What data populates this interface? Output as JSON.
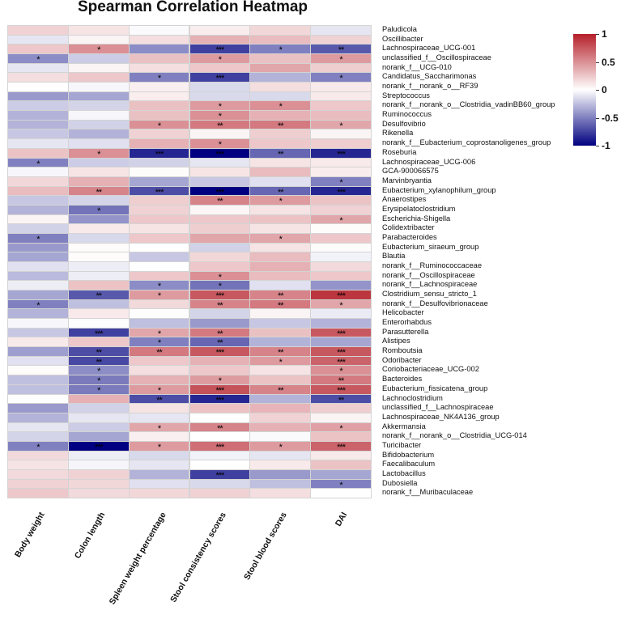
{
  "chart_data": {
    "type": "heatmap",
    "title": "Spearman Correlation Heatmap",
    "columns": [
      "Body weight",
      "Colon length",
      "Spleen weight percentage",
      "Stool consistency scores",
      "Stool blood scores",
      "DAI"
    ],
    "rows": [
      "Paludicola",
      "Oscillibacter",
      "Lachnospiraceae_UCG-001",
      "unclassified_f__Oscillospiraceae",
      "norank_f__UCG-010",
      "Candidatus_Saccharimonas",
      "norank_f__norank_o__RF39",
      "Streptococcus",
      "norank_f__norank_o__Clostridia_vadinBB60_group",
      "Ruminococcus",
      "Desulfovibrio",
      "Rikenella",
      "norank_f__Eubacterium_coprostanoligenes_group",
      "Roseburia",
      "Lachnospiraceae_UCG-006",
      "GCA-900066575",
      "Marvinbryantia",
      "Eubacterium_xylanophilum_group",
      "Anaerostipes",
      "Erysipelatoclostridium",
      "Escherichia-Shigella",
      "Colidextribacter",
      "Parabacteroides",
      "Eubacterium_siraeum_group",
      "Blautia",
      "norank_f__Ruminococcaceae",
      "norank_f__Oscillospiraceae",
      "norank_f__Lachnospiraceae",
      "Clostridium_sensu_stricto_1",
      "norank_f__Desulfovibrionaceae",
      "Helicobacter",
      "Enterorhabdus",
      "Parasutterella",
      "Alistipes",
      "Romboutsia",
      "Odoribacter",
      "Coriobacteriaceae_UCG-002",
      "Bacteroides",
      "Eubacterium_fissicatena_group",
      "Lachnoclostridium",
      "unclassified_f__Lachnospiraceae",
      "Lachnospiraceae_NK4A136_group",
      "Akkermansia",
      "norank_f__norank_o__Clostridia_UCG-014",
      "Turicibacter",
      "Bifidobacterium",
      "Faecalibaculum",
      "Lactobacillus",
      "Dubosiella",
      "norank_f__Muribaculaceae"
    ],
    "values": [
      [
        0.2,
        0.12,
        -0.02,
        0.08,
        0.18,
        -0.1
      ],
      [
        -0.1,
        0.05,
        0.15,
        0.35,
        0.3,
        0.2
      ],
      [
        0.25,
        0.5,
        -0.45,
        -0.75,
        -0.5,
        -0.65
      ],
      [
        -0.45,
        -0.2,
        0.28,
        0.45,
        0.28,
        0.45
      ],
      [
        -0.1,
        0.05,
        0.15,
        0.25,
        0.4,
        0.22
      ],
      [
        0.15,
        0.25,
        -0.5,
        -0.75,
        -0.3,
        -0.5
      ],
      [
        0.0,
        -0.03,
        0.07,
        -0.15,
        0.15,
        0.1
      ],
      [
        -0.4,
        -0.35,
        0.08,
        -0.15,
        -0.15,
        0.1
      ],
      [
        -0.2,
        -0.17,
        0.28,
        0.45,
        0.5,
        0.25
      ],
      [
        -0.3,
        -0.03,
        0.28,
        0.5,
        0.35,
        0.3
      ],
      [
        -0.3,
        -0.18,
        0.5,
        0.6,
        0.6,
        0.4
      ],
      [
        -0.22,
        -0.3,
        0.2,
        0.05,
        0.22,
        0.05
      ],
      [
        -0.1,
        -0.12,
        0.35,
        0.5,
        0.25,
        0.22
      ],
      [
        0.27,
        0.5,
        -0.85,
        -1.0,
        -0.6,
        -0.85
      ],
      [
        -0.5,
        -0.2,
        -0.18,
        -0.1,
        0.12,
        0.1
      ],
      [
        -0.03,
        0.12,
        0.02,
        0.12,
        0.3,
        0.08
      ],
      [
        0.18,
        0.35,
        -0.35,
        -0.22,
        -0.12,
        -0.5
      ],
      [
        0.3,
        0.55,
        -0.7,
        -1.0,
        -0.6,
        -0.85
      ],
      [
        -0.22,
        -0.17,
        0.22,
        0.55,
        0.45,
        0.27
      ],
      [
        -0.3,
        -0.55,
        0.2,
        0.04,
        0.12,
        0.2
      ],
      [
        0.05,
        -0.42,
        0.25,
        0.25,
        0.27,
        0.4
      ],
      [
        -0.18,
        0.1,
        0.12,
        0.22,
        0.12,
        0.02
      ],
      [
        -0.5,
        -0.15,
        0.25,
        0.4,
        0.4,
        0.25
      ],
      [
        -0.4,
        0.02,
        0.0,
        -0.18,
        0.12,
        0.02
      ],
      [
        -0.35,
        0.02,
        -0.22,
        0.18,
        0.3,
        -0.05
      ],
      [
        -0.12,
        -0.07,
        0.0,
        0.25,
        0.35,
        0.17
      ],
      [
        -0.27,
        -0.07,
        0.25,
        0.5,
        0.3,
        0.25
      ],
      [
        -0.07,
        0.27,
        -0.45,
        -0.55,
        -0.12,
        -0.42
      ],
      [
        -0.35,
        -0.65,
        0.45,
        0.75,
        0.55,
        0.9
      ],
      [
        -0.5,
        -0.25,
        0.17,
        0.55,
        0.6,
        0.4
      ],
      [
        -0.3,
        0.1,
        0.01,
        -0.17,
        0.05,
        -0.08
      ],
      [
        -0.03,
        0.01,
        -0.25,
        -0.4,
        -0.22,
        -0.3
      ],
      [
        -0.22,
        -0.75,
        0.4,
        0.6,
        0.28,
        0.75
      ],
      [
        0.1,
        0.25,
        -0.5,
        -0.6,
        -0.3,
        -0.35
      ],
      [
        -0.38,
        -0.7,
        0.6,
        0.75,
        0.55,
        0.75
      ],
      [
        -0.12,
        -0.72,
        0.25,
        0.35,
        0.45,
        0.7
      ],
      [
        0.02,
        -0.45,
        0.15,
        0.25,
        0.12,
        0.5
      ],
      [
        -0.25,
        -0.52,
        0.35,
        0.45,
        0.27,
        0.6
      ],
      [
        -0.25,
        -0.52,
        0.45,
        0.78,
        0.55,
        0.75
      ],
      [
        0.01,
        0.35,
        -0.7,
        -0.85,
        -0.3,
        -0.7
      ],
      [
        -0.4,
        -0.18,
        0.12,
        0.27,
        0.33,
        0.22
      ],
      [
        -0.3,
        -0.1,
        -0.1,
        0.0,
        0.2,
        0.05
      ],
      [
        -0.1,
        -0.2,
        0.4,
        0.55,
        0.35,
        0.42
      ],
      [
        -0.17,
        -0.35,
        0.07,
        0.0,
        -0.02,
        0.27
      ],
      [
        -0.5,
        -1.0,
        0.45,
        0.65,
        0.45,
        0.7
      ],
      [
        0.17,
        -0.07,
        -0.15,
        -0.05,
        -0.1,
        0.1
      ],
      [
        0.12,
        -0.04,
        -0.1,
        0.0,
        0.1,
        0.27
      ],
      [
        0.17,
        0.2,
        -0.3,
        -0.75,
        -0.4,
        -0.35
      ],
      [
        0.2,
        0.18,
        -0.12,
        -0.15,
        -0.25,
        -0.5
      ],
      [
        0.25,
        0.17,
        0.18,
        0.2,
        0.15,
        0.0
      ]
    ],
    "significance": [
      [
        "",
        "",
        "",
        "",
        "",
        ""
      ],
      [
        "",
        "",
        "",
        "",
        "",
        ""
      ],
      [
        "",
        "*",
        "",
        "***",
        "*",
        "**"
      ],
      [
        "*",
        "",
        "",
        "*",
        "",
        "*"
      ],
      [
        "",
        "",
        "",
        "",
        "",
        ""
      ],
      [
        "",
        "",
        "*",
        "***",
        "",
        "*"
      ],
      [
        "",
        "",
        "",
        "",
        "",
        ""
      ],
      [
        "",
        "",
        "",
        "",
        "",
        ""
      ],
      [
        "",
        "",
        "",
        "*",
        "*",
        ""
      ],
      [
        "",
        "",
        "",
        "*",
        "",
        ""
      ],
      [
        "",
        "",
        "*",
        "**",
        "**",
        "*"
      ],
      [
        "",
        "",
        "",
        "",
        "",
        ""
      ],
      [
        "",
        "",
        "",
        "*",
        "",
        ""
      ],
      [
        "",
        "*",
        "***",
        "***",
        "**",
        "***"
      ],
      [
        "*",
        "",
        "",
        "",
        "",
        ""
      ],
      [
        "",
        "",
        "",
        "",
        "",
        ""
      ],
      [
        "",
        "",
        "",
        "",
        "",
        "*"
      ],
      [
        "",
        "**",
        "***",
        "***",
        "**",
        "***"
      ],
      [
        "",
        "",
        "",
        "**",
        "*",
        ""
      ],
      [
        "",
        "*",
        "",
        "",
        "",
        ""
      ],
      [
        "",
        "",
        "",
        "",
        "",
        "*"
      ],
      [
        "",
        "",
        "",
        "",
        "",
        ""
      ],
      [
        "*",
        "",
        "",
        "",
        "*",
        ""
      ],
      [
        "",
        "",
        "",
        "",
        "",
        ""
      ],
      [
        "",
        "",
        "",
        "",
        "",
        ""
      ],
      [
        "",
        "",
        "",
        "",
        "",
        ""
      ],
      [
        "",
        "",
        "",
        "*",
        "",
        ""
      ],
      [
        "",
        "",
        "*",
        "*",
        "",
        ""
      ],
      [
        "",
        "**",
        "*",
        "***",
        "**",
        "***"
      ],
      [
        "*",
        "",
        "",
        "**",
        "**",
        "*"
      ],
      [
        "",
        "",
        "",
        "",
        "",
        ""
      ],
      [
        "",
        "",
        "",
        "",
        "",
        ""
      ],
      [
        "",
        "***",
        "*",
        "**",
        "",
        "***"
      ],
      [
        "",
        "",
        "*",
        "**",
        "",
        ""
      ],
      [
        "",
        "**",
        "**",
        "***",
        "**",
        "***"
      ],
      [
        "",
        "**",
        "",
        "",
        "*",
        "***"
      ],
      [
        "",
        "*",
        "",
        "",
        "",
        "*"
      ],
      [
        "",
        "*",
        "",
        "*",
        "",
        "**"
      ],
      [
        "",
        "*",
        "*",
        "***",
        "**",
        "***"
      ],
      [
        "",
        "",
        "**",
        "***",
        "",
        "**"
      ],
      [
        "",
        "",
        "",
        "",
        "",
        ""
      ],
      [
        "",
        "",
        "",
        "",
        "",
        ""
      ],
      [
        "",
        "",
        "*",
        "**",
        "",
        "*"
      ],
      [
        "",
        "",
        "",
        "",
        "",
        ""
      ],
      [
        "*",
        "***",
        "*",
        "***",
        "*",
        "***"
      ],
      [
        "",
        "",
        "",
        "",
        "",
        ""
      ],
      [
        "",
        "",
        "",
        "",
        "",
        ""
      ],
      [
        "",
        "",
        "",
        "***",
        "",
        ""
      ],
      [
        "",
        "",
        "",
        "",
        "",
        "*"
      ],
      [
        "",
        "",
        "",
        "",
        "",
        ""
      ]
    ],
    "colorbar": {
      "min": -1,
      "max": 1,
      "ticks": [
        "1",
        "0.5",
        "0",
        "-0.5",
        "-1"
      ],
      "high_color": "#B5202A",
      "mid_color": "#FFFFFF",
      "low_color": "#000080"
    },
    "legend_position": "right"
  }
}
